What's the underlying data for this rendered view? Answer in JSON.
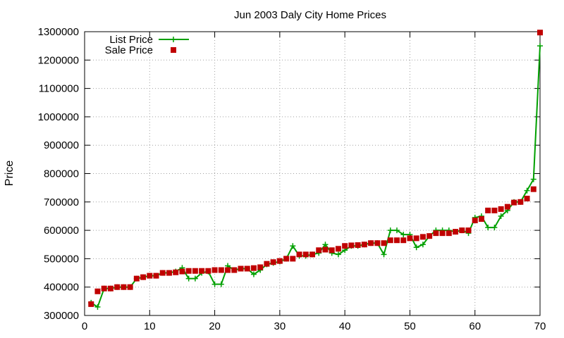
{
  "chart_data": {
    "type": "line",
    "title": "Jun 2003 Daly City Home Prices",
    "xlabel": "",
    "ylabel": "Price",
    "xlim": [
      0,
      70
    ],
    "ylim": [
      300000,
      1300000
    ],
    "xticks": [
      0,
      10,
      20,
      30,
      40,
      50,
      60,
      70
    ],
    "yticks": [
      300000,
      400000,
      500000,
      600000,
      700000,
      800000,
      900000,
      1000000,
      1100000,
      1200000,
      1300000
    ],
    "grid": true,
    "legend_position": "top-left",
    "colors": {
      "list": "#00a000",
      "sale": "#c00000"
    },
    "x": [
      1,
      2,
      3,
      4,
      5,
      6,
      7,
      8,
      9,
      10,
      11,
      12,
      13,
      14,
      15,
      16,
      17,
      18,
      19,
      20,
      21,
      22,
      23,
      24,
      25,
      26,
      27,
      28,
      29,
      30,
      31,
      32,
      33,
      34,
      35,
      36,
      37,
      38,
      39,
      40,
      41,
      42,
      43,
      44,
      45,
      46,
      47,
      48,
      49,
      50,
      51,
      52,
      53,
      54,
      55,
      56,
      57,
      58,
      59,
      60,
      61,
      62,
      63,
      64,
      65,
      66,
      67,
      68,
      69,
      70
    ],
    "series": [
      {
        "name": "List Price",
        "style": "line-plus",
        "values": [
          345000,
          330000,
          395000,
          395000,
          400000,
          400000,
          400000,
          430000,
          435000,
          440000,
          440000,
          450000,
          450000,
          455000,
          468000,
          430000,
          430000,
          450000,
          455000,
          410000,
          410000,
          475000,
          460000,
          465000,
          465000,
          445000,
          460000,
          480000,
          485000,
          490000,
          500000,
          545000,
          510000,
          510000,
          515000,
          520000,
          550000,
          520000,
          515000,
          530000,
          545000,
          545000,
          550000,
          555000,
          555000,
          515000,
          600000,
          600000,
          585000,
          585000,
          540000,
          550000,
          580000,
          600000,
          600000,
          600000,
          595000,
          600000,
          590000,
          645000,
          650000,
          610000,
          610000,
          650000,
          670000,
          700000,
          700000,
          740000,
          780000,
          1250000
        ]
      },
      {
        "name": "Sale Price",
        "style": "square",
        "values": [
          340000,
          385000,
          395000,
          395000,
          400000,
          400000,
          400000,
          430000,
          435000,
          440000,
          440000,
          450000,
          450000,
          452000,
          455000,
          457000,
          457000,
          457000,
          457000,
          460000,
          460000,
          460000,
          460000,
          465000,
          465000,
          467000,
          470000,
          482000,
          488000,
          492000,
          500000,
          500000,
          515000,
          515000,
          515000,
          530000,
          532000,
          530000,
          535000,
          545000,
          547000,
          548000,
          550000,
          555000,
          555000,
          555000,
          565000,
          565000,
          565000,
          572000,
          572000,
          577000,
          580000,
          590000,
          590000,
          590000,
          595000,
          600000,
          600000,
          635000,
          640000,
          670000,
          670000,
          675000,
          683000,
          698000,
          700000,
          712000,
          745000,
          1297000
        ]
      }
    ]
  }
}
